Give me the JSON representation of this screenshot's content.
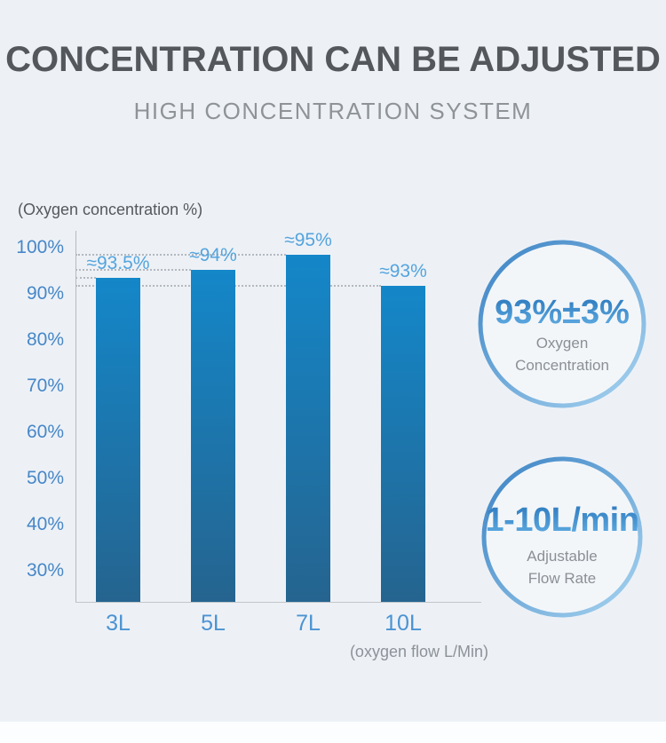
{
  "header": {
    "title": "CONCENTRATION CAN BE ADJUSTED",
    "subtitle": "HIGH CONCENTRATION SYSTEM"
  },
  "chart_data": {
    "type": "bar",
    "title": "",
    "ylabel": "(Oxygen concentration %)",
    "xlabel": "(oxygen flow L/Min)",
    "categories": [
      "3L",
      "5L",
      "7L",
      "10L"
    ],
    "values": [
      93.5,
      94,
      95,
      93
    ],
    "value_labels": [
      "≈93.5%",
      "≈94%",
      "≈95%",
      "≈93%"
    ],
    "y_ticks": [
      {
        "label": "100%",
        "value": 100
      },
      {
        "label": "90%",
        "value": 90
      },
      {
        "label": "80%",
        "value": 80
      },
      {
        "label": "70%",
        "value": 70
      },
      {
        "label": "60%",
        "value": 60
      },
      {
        "label": "50%",
        "value": 50
      },
      {
        "label": "40%",
        "value": 40
      },
      {
        "label": "30%",
        "value": 30
      }
    ],
    "ylim": [
      23,
      104
    ],
    "grid": "horizontal dotted line at each bar top, from y-axis to bar",
    "legend": "none",
    "display_exaggeration": {
      "pivot": 93.5,
      "factor": 3.4,
      "note": "bar height differences drawn exaggerated vs tick scale"
    },
    "bar_color_top": "#1487c9",
    "bar_color_bottom": "#25648f"
  },
  "badges": [
    {
      "value": "93%±3%",
      "label_line1": "Oxygen",
      "label_line2": "Concentration"
    },
    {
      "value": "1-10L/min",
      "label_line1": "Adjustable",
      "label_line2": "Flow Rate"
    }
  ],
  "colors": {
    "background": "#edf1f6",
    "title_text": "#54575c",
    "subtitle_text": "#8e9398",
    "axis_tick_text": "#4787c7",
    "category_text": "#4b93d3",
    "bar_value_text": "#54a4dd",
    "gray_text": "#8a9096",
    "ring_gradient_start": "#3a82c4",
    "ring_gradient_end": "#a8d4f0",
    "gridline": "#b4b9bf"
  }
}
